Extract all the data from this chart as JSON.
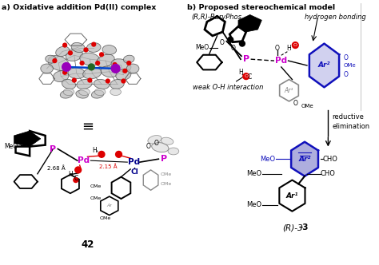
{
  "title_a": "a) Oxidative addition Pd(II) complex",
  "title_b": "b) Proposed stereochemical model",
  "label_42": "42",
  "label_R3": "(R)-3",
  "label_baryphos": "(R,R)-BaryPhos",
  "label_hbond": "hydrogen bonding",
  "label_weak": "weak O-H interaction",
  "label_reductive": "reductive\nelimination",
  "label_equiv": "≡",
  "label_distance1": "2.15 Å",
  "label_distance2": "2.68 Å",
  "label_pd": "Pd",
  "label_pd2": "Pd",
  "label_cl": "Cl",
  "label_p1": "P",
  "label_p2": "P",
  "label_ar1": "Ar",
  "label_ar2": "Ar",
  "label_meo": "MeO",
  "label_cho": "CHO",
  "label_o": "O",
  "label_h": "H",
  "label_c": "C",
  "bg_color": "#ffffff",
  "black": "#000000",
  "magenta": "#cc00cc",
  "blue": "#1010bb",
  "red": "#dd0000",
  "darkblue": "#00008B",
  "gray": "#888888",
  "lightblue_fill": "#aaaaee",
  "lightblue_border": "#2222aa"
}
